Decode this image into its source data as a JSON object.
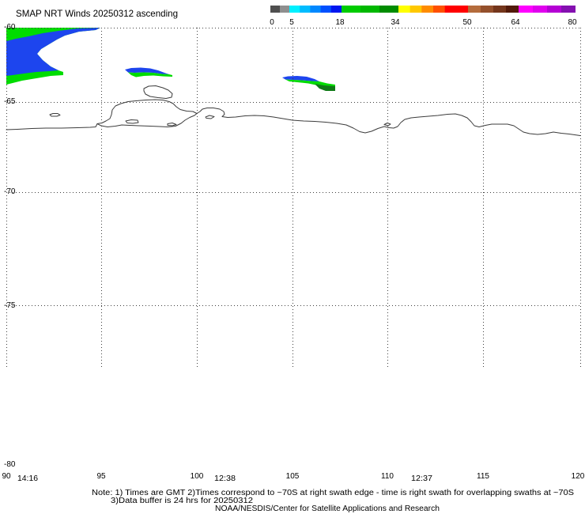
{
  "title": "SMAP NRT Winds 20250312 ascending",
  "colorbar": {
    "labels": [
      "0",
      "5",
      "18",
      "34",
      "50",
      "64",
      "80"
    ],
    "bands": [
      [
        "#4f4f4f",
        "#8f8f8f"
      ],
      [
        "#00f0ff",
        "#00bcff",
        "#0088ff",
        "#0050ff",
        "#0016f0"
      ],
      [
        "#00cc00",
        "#00b800",
        "#008c00"
      ],
      [
        "#ffff00",
        "#ffc800",
        "#ff8c00",
        "#ff5000",
        "#ff0000",
        "#ff0000"
      ],
      [
        "#b46c3c",
        "#94502c",
        "#74361c",
        "#521a0a"
      ],
      [
        "#ff00ff",
        "#e000ee",
        "#b400d4",
        "#8410b0"
      ]
    ]
  },
  "map": {
    "latitude_labels": [
      "-60",
      "-65",
      "-70",
      "-75",
      "-80"
    ],
    "longitude_labels": [
      "90",
      "95",
      "100",
      "105",
      "110",
      "115",
      "120"
    ],
    "pass_times": [
      "14:16",
      "12:38",
      "12:37"
    ],
    "colors": {
      "grid": "#404040",
      "coastline": "#3c3c3c",
      "swath_blue": "#1d45ee",
      "swath_green": "#00dc00",
      "swath_dark_green": "#0f7a16"
    }
  },
  "notes": {
    "line1": "Note: 1) Times are GMT 2)Times correspond to ~70S at right swath edge - time is right swath for overlapping swaths at ~70S",
    "line2": "3)Data buffer is 24 hrs for 20250312",
    "credit": "NOAA/NESDIS/Center for Satellite Applications and Research"
  }
}
